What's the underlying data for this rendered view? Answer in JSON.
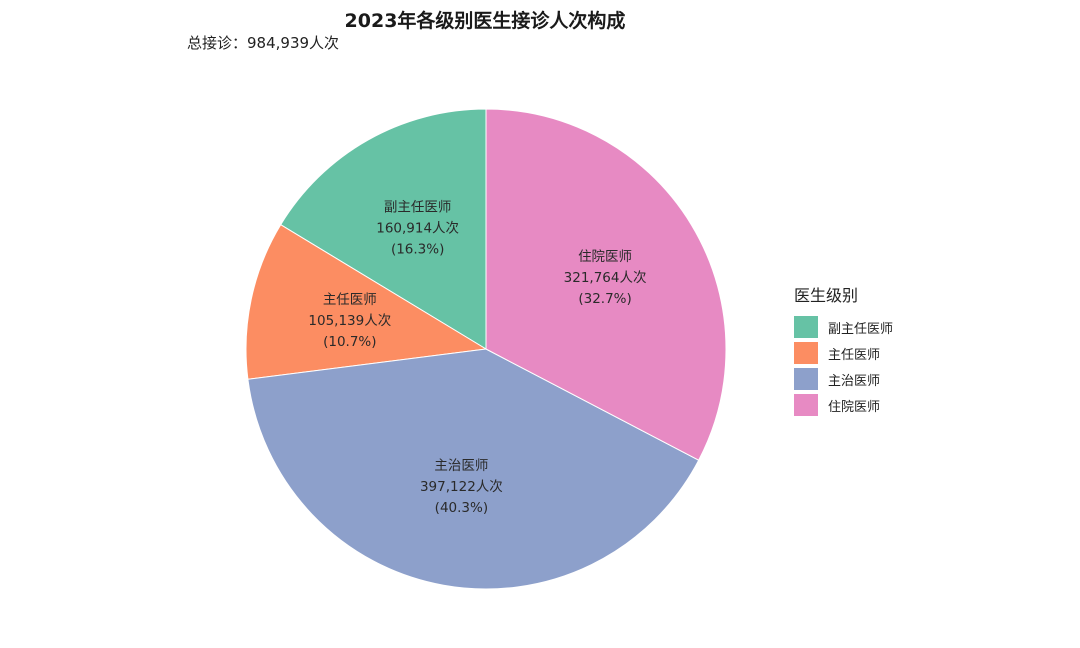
{
  "chart_data": {
    "type": "pie",
    "title": "2023年各级别医生接诊人次构成",
    "subtitle": "总接诊：984,939人次",
    "legend_title": "医生级别",
    "legend_position": "right",
    "slices": [
      {
        "name": "副主任医师",
        "value": 160914,
        "value_label": "160,914人次",
        "percent_label": "(16.3%)",
        "color": "#66c2a5"
      },
      {
        "name": "主任医师",
        "value": 105139,
        "value_label": "105,139人次",
        "percent_label": "(10.7%)",
        "color": "#fc8d62"
      },
      {
        "name": "主治医师",
        "value": 397122,
        "value_label": "397,122人次",
        "percent_label": "(40.3%)",
        "color": "#8da0cb"
      },
      {
        "name": "住院医师",
        "value": 321764,
        "value_label": "321,764人次",
        "percent_label": "(32.7%)",
        "color": "#e78ac3"
      }
    ]
  }
}
